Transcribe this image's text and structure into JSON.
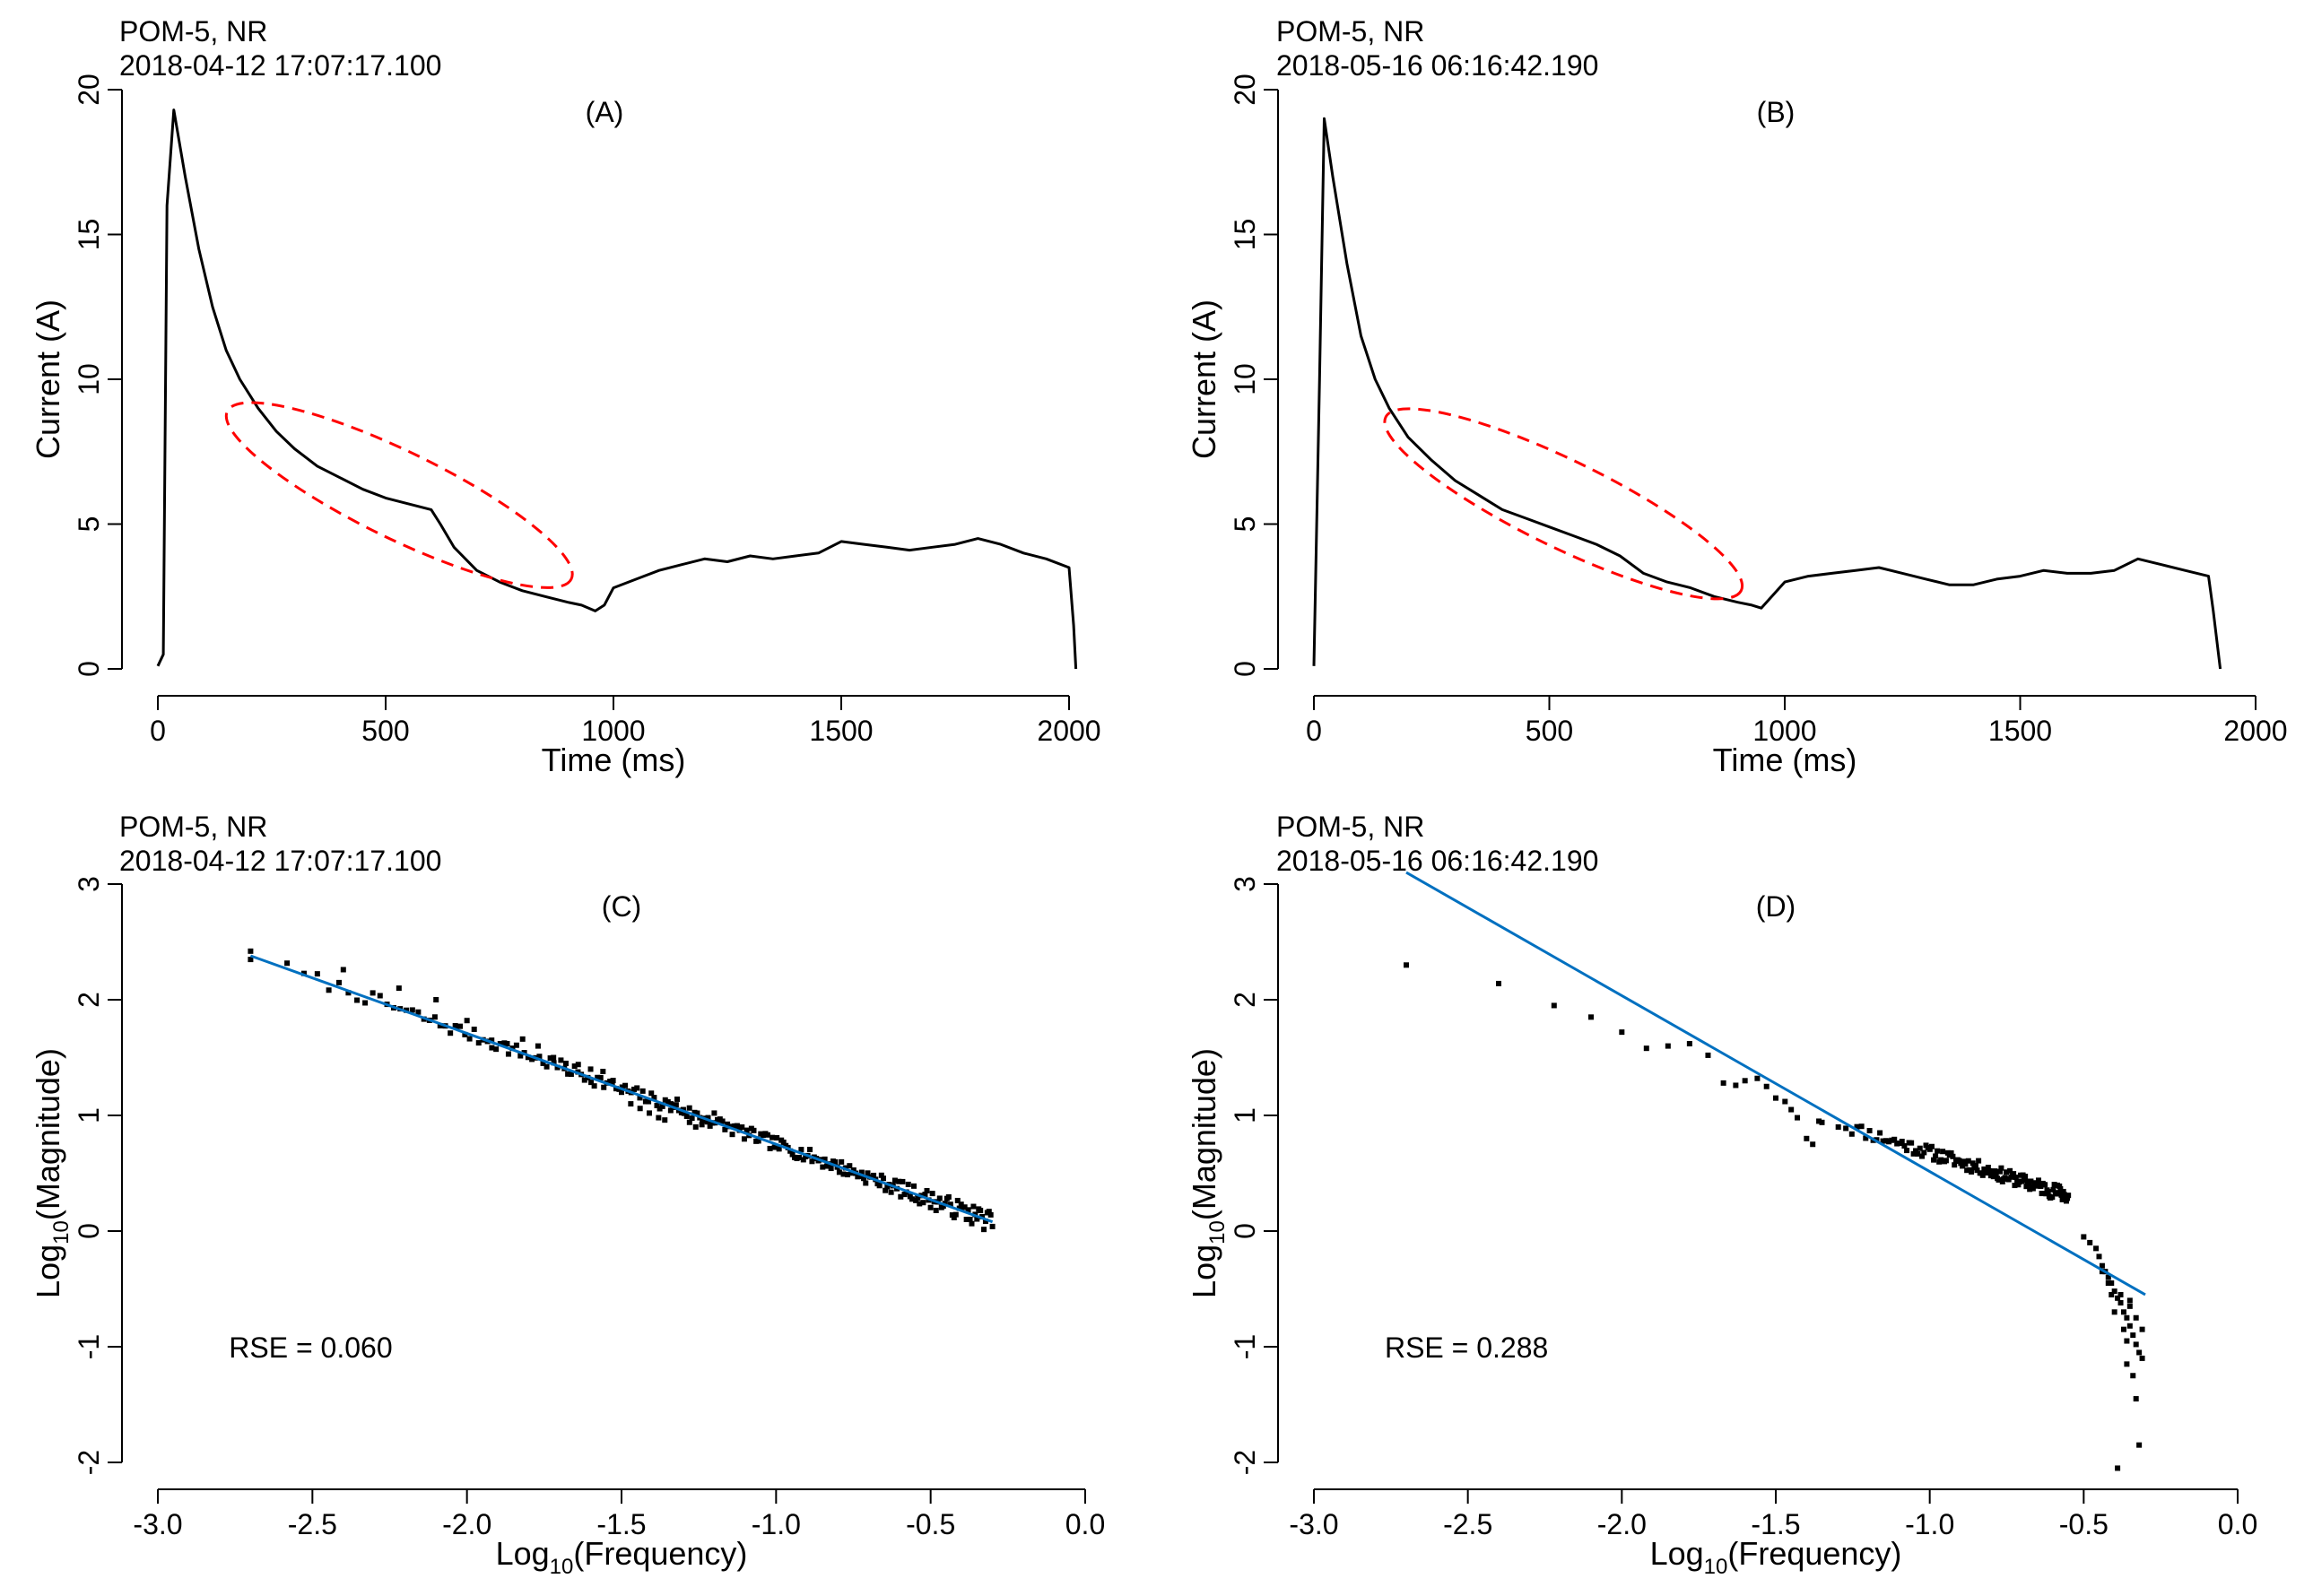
{
  "chart_data": [
    {
      "id": "A",
      "type": "line",
      "panel_label": "(A)",
      "header": {
        "line1": "POM-5, NR",
        "line2": "2018-04-12 17:07:17.100"
      },
      "xlabel": "Time (ms)",
      "ylabel": "Current (A)",
      "xlim": [
        0,
        2000
      ],
      "ylim": [
        0,
        20
      ],
      "xticks": [
        0,
        500,
        1000,
        1500,
        2000
      ],
      "yticks": [
        0,
        5,
        10,
        15,
        20
      ],
      "series": [
        {
          "name": "current",
          "color": "#000000",
          "x": [
            0,
            12,
            20,
            35,
            60,
            90,
            120,
            150,
            180,
            220,
            260,
            300,
            350,
            400,
            450,
            500,
            550,
            600,
            620,
            650,
            700,
            750,
            800,
            850,
            900,
            930,
            960,
            980,
            1000,
            1050,
            1100,
            1150,
            1200,
            1250,
            1300,
            1350,
            1400,
            1450,
            1500,
            1550,
            1600,
            1650,
            1700,
            1750,
            1800,
            1850,
            1900,
            1950,
            2000,
            2010,
            2015
          ],
          "y": [
            0.1,
            0.5,
            16,
            19.3,
            17,
            14.5,
            12.5,
            11,
            10,
            9,
            8.2,
            7.6,
            7.0,
            6.6,
            6.2,
            5.9,
            5.7,
            5.5,
            5.0,
            4.2,
            3.4,
            3.0,
            2.7,
            2.5,
            2.3,
            2.2,
            2.0,
            2.2,
            2.8,
            3.1,
            3.4,
            3.6,
            3.8,
            3.7,
            3.9,
            3.8,
            3.9,
            4.0,
            4.4,
            4.3,
            4.2,
            4.1,
            4.2,
            4.3,
            4.5,
            4.3,
            4.0,
            3.8,
            3.5,
            1.5,
            0.0
          ]
        }
      ],
      "annotation": {
        "type": "ellipse",
        "color": "#ff0000",
        "center": [
          530,
          6.0
        ],
        "rx_data": 420,
        "ry_data": 1.5,
        "angle_deg": 26
      }
    },
    {
      "id": "B",
      "type": "line",
      "panel_label": "(B)",
      "header": {
        "line1": "POM-5, NR",
        "line2": "2018-05-16 06:16:42.190"
      },
      "xlabel": "Time (ms)",
      "ylabel": "Current (A)",
      "xlim": [
        0,
        2000
      ],
      "ylim": [
        0,
        20
      ],
      "xticks": [
        0,
        500,
        1000,
        1500,
        2000
      ],
      "yticks": [
        0,
        5,
        10,
        15,
        20
      ],
      "series": [
        {
          "name": "current",
          "color": "#000000",
          "x": [
            0,
            12,
            22,
            40,
            70,
            100,
            130,
            160,
            200,
            250,
            300,
            350,
            400,
            450,
            500,
            550,
            600,
            650,
            700,
            750,
            800,
            850,
            900,
            930,
            950,
            1000,
            1050,
            1100,
            1150,
            1200,
            1250,
            1300,
            1350,
            1400,
            1450,
            1500,
            1550,
            1600,
            1650,
            1700,
            1750,
            1800,
            1850,
            1900,
            1910,
            1925
          ],
          "y": [
            0.1,
            10,
            19.0,
            17,
            14,
            11.5,
            10,
            9.0,
            8.0,
            7.2,
            6.5,
            6.0,
            5.5,
            5.2,
            4.9,
            4.6,
            4.3,
            3.9,
            3.3,
            3.0,
            2.8,
            2.5,
            2.3,
            2.2,
            2.1,
            3.0,
            3.2,
            3.3,
            3.4,
            3.5,
            3.3,
            3.1,
            2.9,
            2.9,
            3.1,
            3.2,
            3.4,
            3.3,
            3.3,
            3.4,
            3.8,
            3.6,
            3.4,
            3.2,
            2.0,
            0.0
          ]
        }
      ],
      "annotation": {
        "type": "ellipse",
        "color": "#ff0000",
        "center": [
          530,
          5.7
        ],
        "rx_data": 420,
        "ry_data": 1.5,
        "angle_deg": 26
      }
    },
    {
      "id": "C",
      "type": "scatter",
      "panel_label": "(C)",
      "header": {
        "line1": "POM-5, NR",
        "line2": "2018-04-12 17:07:17.100"
      },
      "xlabel_base": "Log",
      "xlabel_sub": "10",
      "xlabel_rest": "(Frequency)",
      "ylabel_base": "Log",
      "ylabel_sub": "10",
      "ylabel_rest": "(Magnitude)",
      "xlim": [
        -3.0,
        0.0
      ],
      "ylim": [
        -2,
        3
      ],
      "xticks": [
        -3.0,
        -2.5,
        -2.0,
        -1.5,
        -1.0,
        -0.5,
        0.0
      ],
      "xtick_labels": [
        "-3.0",
        "-2.5",
        "-2.0",
        "-1.5",
        "-1.0",
        "-0.5",
        "0.0"
      ],
      "yticks": [
        -2,
        -1,
        0,
        1,
        2,
        3
      ],
      "ytick_labels": [
        "-2",
        "-1",
        "0",
        "1",
        "2",
        "3"
      ],
      "fit_line": {
        "color": "#0070c0",
        "x": [
          -2.7,
          -0.3
        ],
        "y": [
          2.38,
          0.08
        ]
      },
      "rse_text": "RSE = 0.060",
      "point_model": {
        "x_start": -2.7,
        "x_end": -0.3,
        "slope": -0.958,
        "intercept": -0.207,
        "scatter_amplitude": 0.06,
        "count": 240,
        "seed": 7
      },
      "points_explicit": {
        "x": [
          -2.7,
          -2.4,
          -2.22,
          -2.1,
          -2.0,
          -1.92,
          -1.87,
          -1.82,
          -1.77,
          -1.72,
          -1.68,
          -1.64,
          -1.6,
          -1.56,
          -1.53,
          -1.5,
          -1.47,
          -1.44,
          -1.41,
          -1.38,
          -1.36,
          -1.34,
          -1.32,
          -1.3,
          -1.28,
          -1.26,
          -1.24,
          -1.22,
          -1.2
        ],
        "y": [
          2.42,
          2.26,
          2.1,
          2.0,
          1.82,
          1.65,
          1.62,
          1.66,
          1.6,
          1.5,
          1.45,
          1.44,
          1.4,
          1.38,
          1.28,
          1.2,
          1.1,
          1.06,
          1.02,
          0.98,
          0.96,
          1.1,
          1.14,
          1.05,
          0.94,
          0.9,
          0.92,
          0.98,
          1.02
        ]
      }
    },
    {
      "id": "D",
      "type": "scatter",
      "panel_label": "(D)",
      "header": {
        "line1": "POM-5, NR",
        "line2": "2018-05-16 06:16:42.190"
      },
      "xlabel_base": "Log",
      "xlabel_sub": "10",
      "xlabel_rest": "(Frequency)",
      "ylabel_base": "Log",
      "ylabel_sub": "10",
      "ylabel_rest": "(Magnitude)",
      "xlim": [
        -3.0,
        0.0
      ],
      "ylim": [
        -2,
        3
      ],
      "xticks": [
        -3.0,
        -2.5,
        -2.0,
        -1.5,
        -1.0,
        -0.5,
        0.0
      ],
      "xtick_labels": [
        "-3.0",
        "-2.5",
        "-2.0",
        "-1.5",
        "-1.0",
        "-0.5",
        "0.0"
      ],
      "yticks": [
        -2,
        -1,
        0,
        1,
        2,
        3
      ],
      "ytick_labels": [
        "-2",
        "-1",
        "0",
        "1",
        "2",
        "3"
      ],
      "fit_line": {
        "color": "#0070c0",
        "x": [
          -2.7,
          -0.3
        ],
        "y": [
          3.1,
          -0.55
        ]
      },
      "rse_text": "RSE = 0.288",
      "point_model": {
        "x_start": -1.35,
        "x_end": -0.55,
        "slope": -0.83,
        "intercept": -0.15,
        "scatter_amplitude": 0.06,
        "count": 140,
        "seed": 11
      },
      "points_explicit": {
        "x": [
          -2.7,
          -2.4,
          -2.22,
          -2.1,
          -2.0,
          -1.92,
          -1.85,
          -1.78,
          -1.72,
          -1.67,
          -1.63,
          -1.6,
          -1.56,
          -1.53,
          -1.5,
          -1.47,
          -1.45,
          -1.43,
          -1.4,
          -1.38,
          -1.36,
          -0.5,
          -0.48,
          -0.46,
          -0.45,
          -0.44,
          -0.43,
          -0.42,
          -0.41,
          -0.4,
          -0.39,
          -0.38,
          -0.37,
          -0.36,
          -0.35,
          -0.34,
          -0.33,
          -0.32,
          -0.31,
          -0.42,
          -0.38,
          -0.36,
          -0.34,
          -0.33,
          -0.32,
          -0.35,
          -0.37,
          -0.4,
          -0.31,
          -0.36,
          -0.33,
          -0.35,
          -0.39,
          -0.41,
          -0.44
        ],
        "y": [
          2.3,
          2.14,
          1.95,
          1.85,
          1.72,
          1.58,
          1.6,
          1.62,
          1.52,
          1.28,
          1.26,
          1.3,
          1.32,
          1.25,
          1.15,
          1.12,
          1.05,
          0.98,
          0.8,
          0.75,
          0.95,
          -0.05,
          -0.1,
          -0.15,
          -0.22,
          -0.3,
          -0.35,
          -0.4,
          -0.45,
          -0.52,
          -0.58,
          -0.62,
          -0.7,
          -0.75,
          -0.82,
          -0.9,
          -0.98,
          -1.05,
          -1.1,
          -0.45,
          -0.55,
          -0.95,
          -1.25,
          -1.45,
          -1.85,
          -0.65,
          -0.85,
          -0.7,
          -0.85,
          -1.15,
          -0.75,
          -0.6,
          -2.05,
          -0.55,
          -0.35
        ]
      }
    }
  ]
}
